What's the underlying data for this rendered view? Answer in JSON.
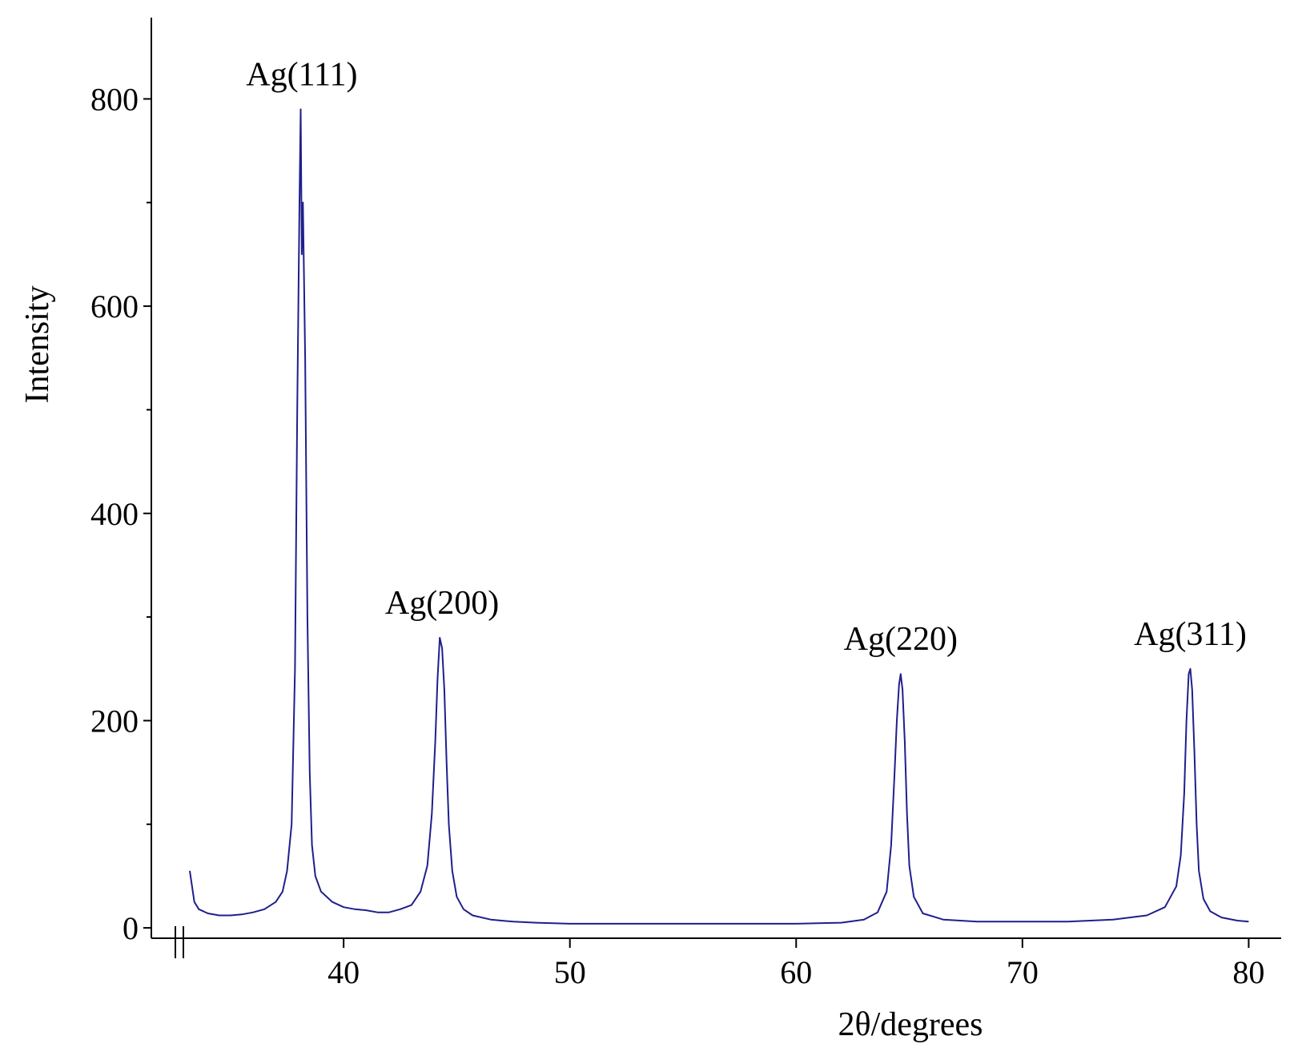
{
  "chart_data": {
    "type": "line",
    "title": "",
    "xlabel": "2θ/degrees",
    "ylabel": "Intensity",
    "xlim": [
      33.2,
      80.8
    ],
    "ylim": [
      -10,
      880
    ],
    "x_ticks": [
      40,
      50,
      60,
      70,
      80
    ],
    "x_tick_labels": [
      "40",
      "50",
      "60",
      "70",
      "80"
    ],
    "y_ticks_major": [
      0,
      200,
      400,
      600,
      800
    ],
    "y_tick_labels": [
      "0",
      "200",
      "400",
      "600",
      "800"
    ],
    "y_ticks_minor": [
      100,
      300,
      500,
      700
    ],
    "grid": false,
    "legend": "none",
    "colors": {
      "series": "#1f1f8c",
      "axis": "#000000"
    },
    "series": [
      {
        "x": [
          33.2,
          33.4,
          33.6,
          34.0,
          34.5,
          35.0,
          35.5,
          36.0,
          36.5,
          37.0,
          37.3,
          37.5,
          37.7,
          37.85,
          37.95,
          38.05,
          38.1,
          38.15,
          38.2,
          38.3,
          38.4,
          38.5,
          38.6,
          38.75,
          39.0,
          39.5,
          40.0,
          40.5,
          41.0,
          41.5,
          42.0,
          42.5,
          43.0,
          43.4,
          43.7,
          43.9,
          44.05,
          44.15,
          44.25,
          44.35,
          44.45,
          44.55,
          44.65,
          44.8,
          45.0,
          45.3,
          45.7,
          46.5,
          47.5,
          48.5,
          50.0,
          52.0,
          54.0,
          56.0,
          58.0,
          60.0,
          62.0,
          63.0,
          63.6,
          64.0,
          64.2,
          64.35,
          64.45,
          64.55,
          64.62,
          64.7,
          64.8,
          64.9,
          65.0,
          65.2,
          65.6,
          66.5,
          68.0,
          70.0,
          72.0,
          74.0,
          75.5,
          76.3,
          76.8,
          77.0,
          77.15,
          77.25,
          77.35,
          77.42,
          77.5,
          77.6,
          77.7,
          77.8,
          78.0,
          78.3,
          78.8,
          79.5,
          80.0
        ],
        "y": [
          55,
          25,
          18,
          14,
          12,
          12,
          13,
          15,
          18,
          25,
          35,
          55,
          100,
          250,
          500,
          700,
          790,
          650,
          700,
          550,
          300,
          150,
          80,
          50,
          35,
          25,
          20,
          18,
          17,
          15,
          15,
          18,
          22,
          35,
          60,
          110,
          180,
          240,
          280,
          270,
          230,
          160,
          100,
          55,
          30,
          18,
          12,
          8,
          6,
          5,
          4,
          4,
          4,
          4,
          4,
          4,
          5,
          8,
          15,
          35,
          80,
          150,
          200,
          235,
          245,
          230,
          180,
          110,
          60,
          30,
          14,
          8,
          6,
          6,
          6,
          8,
          12,
          20,
          40,
          70,
          130,
          200,
          245,
          250,
          230,
          170,
          100,
          55,
          28,
          16,
          10,
          7,
          6
        ]
      }
    ],
    "annotations": [
      {
        "text": "Ag(111)",
        "x": 38.15,
        "y": 790
      },
      {
        "text": "Ag(200)",
        "x": 44.35,
        "y": 280
      },
      {
        "text": "Ag(220)",
        "x": 64.62,
        "y": 245
      },
      {
        "text": "Ag(311)",
        "x": 77.42,
        "y": 250
      }
    ]
  }
}
